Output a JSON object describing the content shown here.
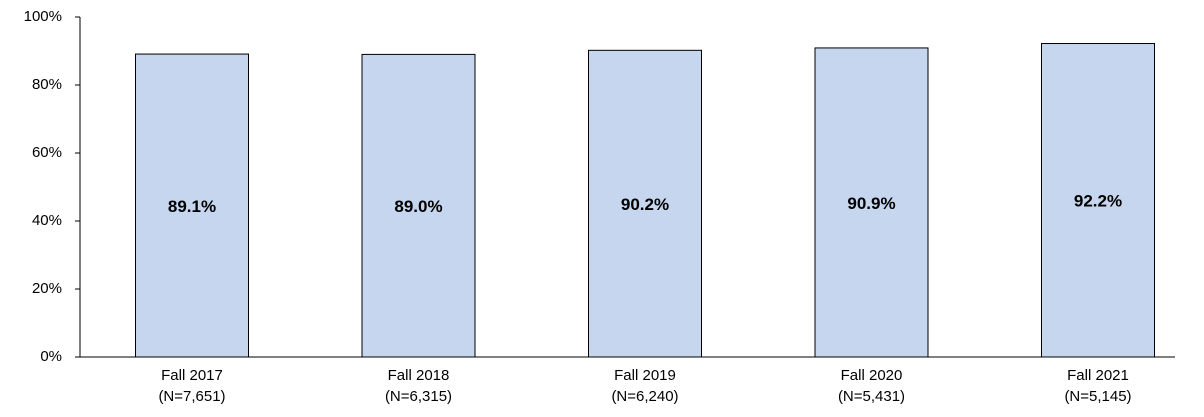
{
  "chart_data": {
    "type": "bar",
    "categories": [
      [
        "Fall 2017",
        "(N=7,651)"
      ],
      [
        "Fall 2018",
        "(N=6,315)"
      ],
      [
        "Fall 2019",
        "(N=6,240)"
      ],
      [
        "Fall 2020",
        "(N=5,431)"
      ],
      [
        "Fall 2021",
        "(N=5,145)"
      ]
    ],
    "values": [
      89.1,
      89.0,
      90.2,
      90.9,
      92.2
    ],
    "value_labels": [
      "89.1%",
      "89.0%",
      "90.2%",
      "90.9%",
      "92.2%"
    ],
    "color": "#c5d6ee",
    "ylim": [
      0,
      100
    ],
    "yticks": [
      {
        "value": 0,
        "label": "0%"
      },
      {
        "value": 20,
        "label": "20%"
      },
      {
        "value": 40,
        "label": "40%"
      },
      {
        "value": 60,
        "label": "60%"
      },
      {
        "value": 80,
        "label": "80%"
      },
      {
        "value": 100,
        "label": "100%"
      }
    ]
  }
}
